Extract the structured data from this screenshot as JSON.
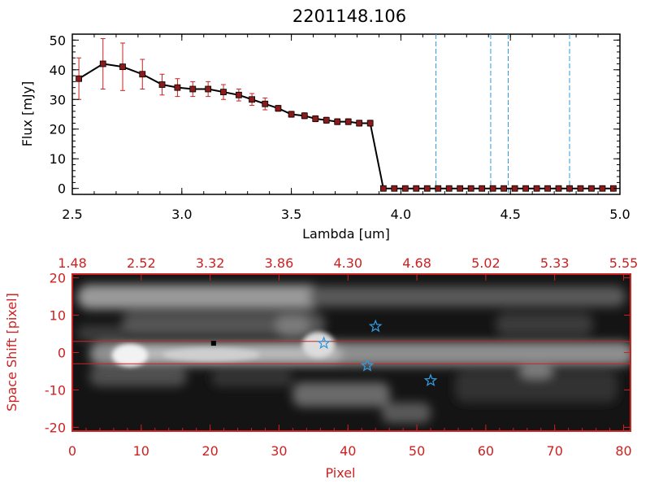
{
  "chart_data": [
    {
      "type": "line",
      "title": "2201148.106",
      "xlabel": "Lambda [um]",
      "ylabel": "Flux [mJy]",
      "xlim": [
        2.5,
        5.0
      ],
      "ylim": [
        -2,
        52
      ],
      "x_ticks": [
        "2.5",
        "3.0",
        "3.5",
        "4.0",
        "4.5",
        "5.0"
      ],
      "y_ticks": [
        "0",
        "10",
        "20",
        "30",
        "40",
        "50"
      ],
      "grid": false,
      "colors": {
        "line": "#000000",
        "marker": "#8b1a1a",
        "error_bar": "#cc2222",
        "vline": "#3399dd"
      },
      "series": [
        {
          "x": [
            2.53,
            2.64,
            2.73,
            2.82,
            2.91,
            2.98,
            3.05,
            3.12,
            3.19,
            3.26,
            3.32,
            3.38,
            3.44,
            3.5,
            3.56,
            3.61,
            3.66,
            3.71,
            3.76,
            3.81,
            3.86,
            3.92,
            3.97,
            4.02,
            4.07,
            4.12,
            4.17,
            4.22,
            4.27,
            4.32,
            4.37,
            4.42,
            4.47,
            4.52,
            4.57,
            4.62,
            4.67,
            4.72,
            4.77,
            4.82,
            4.87,
            4.92,
            4.97
          ],
          "y": [
            37,
            42,
            41,
            38.5,
            35,
            34,
            33.5,
            33.5,
            32.5,
            31.5,
            30,
            28.5,
            27,
            25,
            24.5,
            23.5,
            23,
            22.5,
            22.5,
            22,
            22,
            0,
            0,
            0,
            0,
            0,
            0,
            0,
            0,
            0,
            0,
            0,
            0,
            0,
            0,
            0,
            0,
            0,
            0,
            0,
            0,
            0,
            0
          ],
          "yerr": [
            7,
            8.5,
            8,
            5,
            3.5,
            3,
            2.5,
            2.5,
            2.5,
            2,
            2,
            2,
            1,
            1,
            1,
            1,
            1,
            1,
            1,
            1,
            1,
            0,
            0,
            0,
            0,
            0,
            0,
            0,
            0,
            0,
            0,
            0,
            0,
            0,
            0,
            0,
            0,
            0,
            0,
            0,
            0,
            0,
            0
          ]
        }
      ],
      "vlines": [
        4.16,
        4.41,
        4.49,
        4.77
      ]
    },
    {
      "type": "heatmap",
      "xlabel": "Pixel",
      "ylabel": "Space Shift [pixel]",
      "xlim": [
        0,
        81
      ],
      "ylim": [
        -21,
        21
      ],
      "x_ticks": [
        "0",
        "10",
        "20",
        "30",
        "40",
        "50",
        "60",
        "70",
        "80"
      ],
      "y_ticks": [
        "-20",
        "-10",
        "0",
        "10",
        "20"
      ],
      "top_ticks": [
        "1.48",
        "2.52",
        "3.32",
        "3.86",
        "4.30",
        "4.68",
        "5.02",
        "5.33",
        "5.55"
      ],
      "colors": {
        "frame": "#cc2222",
        "star": "#3399dd",
        "extraction_line": "#cc2222"
      },
      "extraction_window": [
        -3,
        3
      ],
      "stars": [
        {
          "x": 36.5,
          "y": 2.5
        },
        {
          "x": 44,
          "y": 7
        },
        {
          "x": 42.8,
          "y": -3.5
        },
        {
          "x": 52,
          "y": -7.5
        }
      ],
      "marker_dot": {
        "x": 20.5,
        "y": 2.5
      }
    }
  ]
}
